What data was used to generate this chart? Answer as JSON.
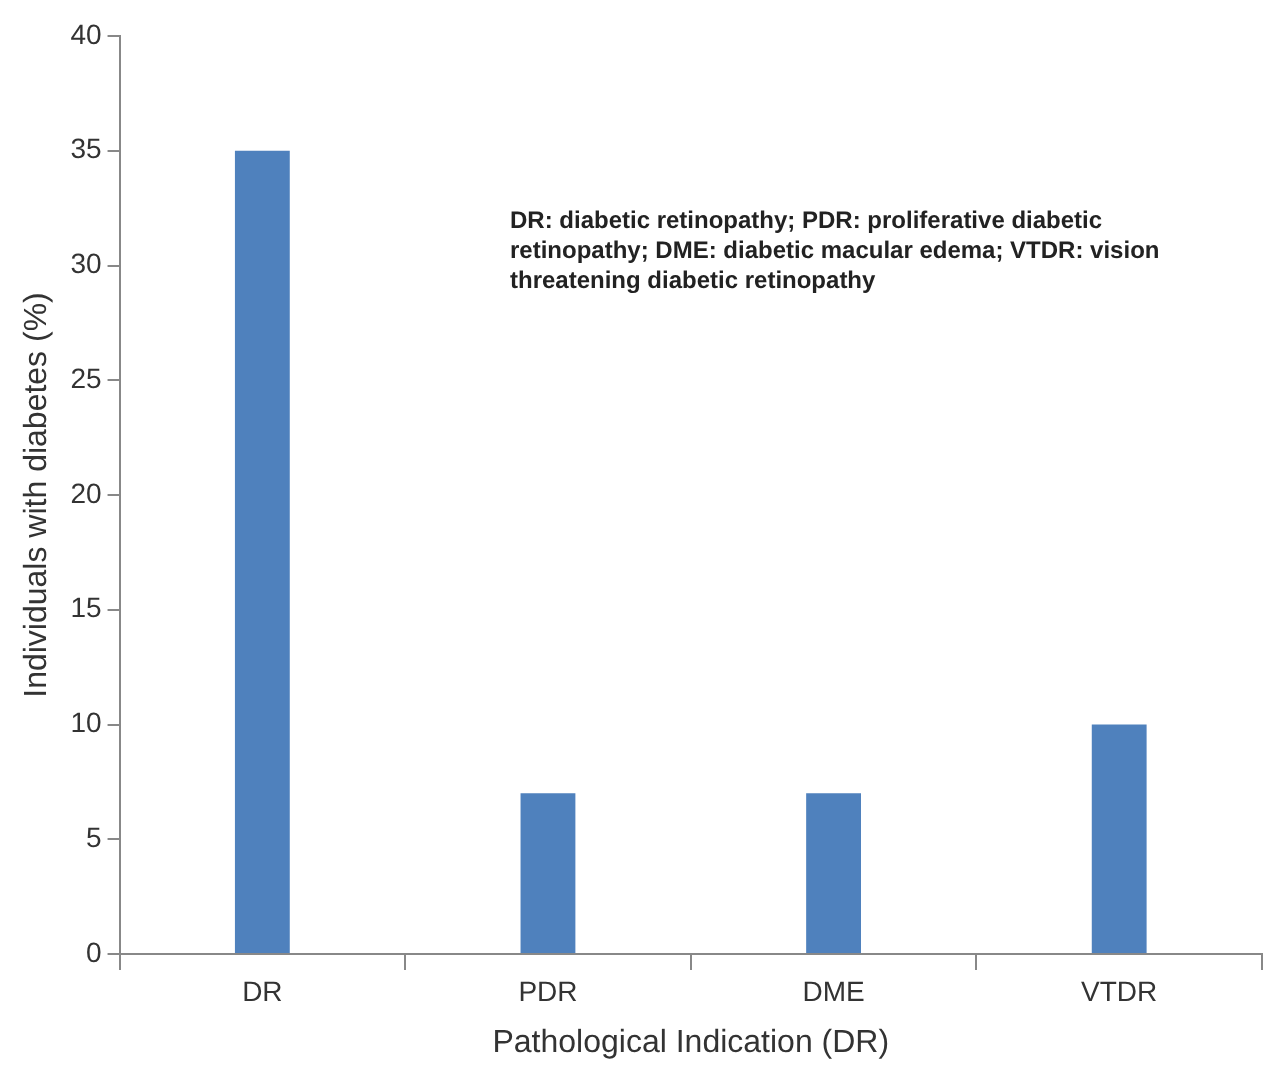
{
  "chart_data": {
    "type": "bar",
    "categories": [
      "DR",
      "PDR",
      "DME",
      "VTDR"
    ],
    "values": [
      35,
      7,
      7,
      10
    ],
    "color": "#4f81bd",
    "ylim": [
      0,
      40
    ],
    "yticks": [
      0,
      5,
      10,
      15,
      20,
      25,
      30,
      35,
      40
    ],
    "xlabel": "Pathological Indication (DR)",
    "ylabel": "Individuals with diabetes (%)",
    "grid": false,
    "legend": false,
    "annotations": [
      "DR: diabetic retinopathy; PDR: proliferative diabetic retinopathy; DME: diabetic macular edema; VTDR: vision threatening diabetic retinopathy"
    ]
  }
}
